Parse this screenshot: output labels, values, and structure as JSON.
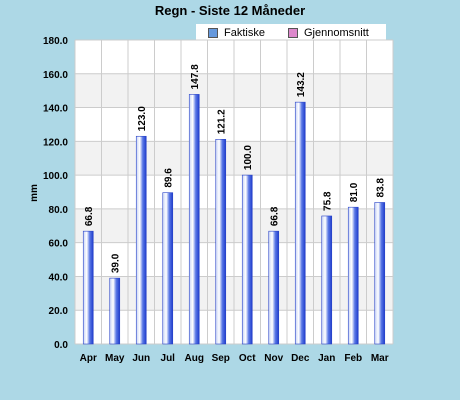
{
  "chart_data": {
    "type": "bar",
    "title": "Regn - Siste 12 Måneder",
    "ylabel": "mm",
    "xlabel": "",
    "categories": [
      "Apr",
      "May",
      "Jun",
      "Jul",
      "Aug",
      "Sep",
      "Oct",
      "Nov",
      "Dec",
      "Jan",
      "Feb",
      "Mar"
    ],
    "series": [
      {
        "name": "Faktiske",
        "color": "#3355dd",
        "values": [
          66.8,
          39.0,
          123.0,
          89.6,
          147.8,
          121.2,
          100.0,
          66.8,
          143.2,
          75.8,
          81.0,
          83.8
        ],
        "labels": [
          "66.8",
          "39.0",
          "123.0",
          "89.6",
          "147.8",
          "121.2",
          "100.0",
          "66.8",
          "143.2",
          "75.8",
          "81.0",
          "83.8"
        ]
      }
    ],
    "legend": [
      {
        "name": "Faktiske",
        "color": "#6699dd"
      },
      {
        "name": "Gjennomsnitt",
        "color": "#dd88cc"
      }
    ],
    "ylim": [
      0,
      180
    ],
    "yticks": [
      "0.0",
      "20.0",
      "40.0",
      "60.0",
      "80.0",
      "100.0",
      "120.0",
      "140.0",
      "160.0",
      "180.0"
    ],
    "grid": true,
    "legend_position": "top-right"
  }
}
